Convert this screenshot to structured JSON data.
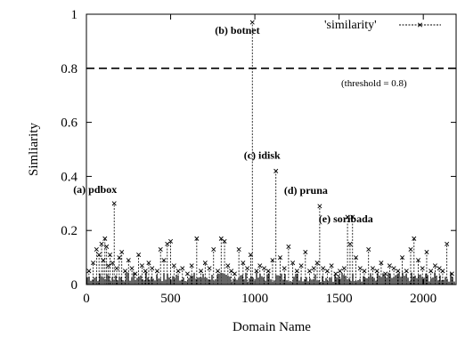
{
  "chart_data": {
    "type": "line",
    "xlabel": "Domain Name",
    "ylabel": "Simliarity",
    "xlim": [
      0,
      2200
    ],
    "ylim": [
      0,
      1
    ],
    "xticks": [
      0,
      500,
      1000,
      1500,
      2000
    ],
    "yticks": [
      0,
      0.2,
      0.4,
      0.6,
      0.8,
      1
    ],
    "ytick_labels": [
      "0",
      "0.2",
      "0.4",
      "0.6",
      "0.8",
      "1"
    ],
    "grid": false,
    "legend_position": "top-right",
    "series": [
      {
        "name": "'similarity'",
        "style": "impulses-points",
        "color": "#000000",
        "x": [
          15,
          40,
          60,
          75,
          90,
          100,
          110,
          120,
          130,
          140,
          155,
          165,
          180,
          195,
          210,
          230,
          250,
          270,
          290,
          310,
          330,
          350,
          370,
          390,
          420,
          440,
          460,
          480,
          500,
          520,
          545,
          570,
          600,
          625,
          655,
          680,
          705,
          730,
          755,
          780,
          800,
          820,
          840,
          860,
          880,
          905,
          930,
          955,
          975,
          985,
          1010,
          1030,
          1055,
          1080,
          1105,
          1125,
          1150,
          1175,
          1200,
          1225,
          1250,
          1275,
          1300,
          1325,
          1350,
          1370,
          1385,
          1405,
          1430,
          1455,
          1480,
          1505,
          1530,
          1550,
          1565,
          1580,
          1600,
          1625,
          1650,
          1675,
          1700,
          1725,
          1750,
          1775,
          1800,
          1825,
          1850,
          1875,
          1900,
          1925,
          1945,
          1970,
          1995,
          2020,
          2045,
          2070,
          2095,
          2115,
          2140,
          2170
        ],
        "y": [
          0.05,
          0.08,
          0.13,
          0.11,
          0.15,
          0.09,
          0.17,
          0.14,
          0.07,
          0.11,
          0.08,
          0.3,
          0.06,
          0.1,
          0.12,
          0.05,
          0.09,
          0.06,
          0.04,
          0.11,
          0.07,
          0.05,
          0.08,
          0.06,
          0.05,
          0.13,
          0.09,
          0.15,
          0.16,
          0.07,
          0.05,
          0.06,
          0.04,
          0.07,
          0.17,
          0.05,
          0.08,
          0.06,
          0.13,
          0.05,
          0.17,
          0.16,
          0.07,
          0.05,
          0.04,
          0.13,
          0.08,
          0.06,
          0.11,
          0.97,
          0.05,
          0.07,
          0.06,
          0.05,
          0.09,
          0.42,
          0.1,
          0.06,
          0.14,
          0.08,
          0.05,
          0.07,
          0.12,
          0.05,
          0.06,
          0.08,
          0.29,
          0.06,
          0.05,
          0.07,
          0.04,
          0.05,
          0.06,
          0.25,
          0.15,
          0.25,
          0.1,
          0.06,
          0.05,
          0.13,
          0.06,
          0.05,
          0.08,
          0.04,
          0.07,
          0.06,
          0.05,
          0.1,
          0.05,
          0.13,
          0.17,
          0.09,
          0.06,
          0.12,
          0.05,
          0.07,
          0.06,
          0.05,
          0.15,
          0.04
        ]
      }
    ],
    "threshold": {
      "value": 0.8,
      "label": "(threshold = 0.8)"
    },
    "annotations": [
      {
        "text": "(a) pdbox",
        "x": 165,
        "y": 0.3
      },
      {
        "text": "(b) botnet",
        "x": 985,
        "y": 0.97
      },
      {
        "text": "(c) idisk",
        "x": 1125,
        "y": 0.42
      },
      {
        "text": "(d) pruna",
        "x": 1385,
        "y": 0.29
      },
      {
        "text": "(e) soribada",
        "x": 1580,
        "y": 0.25
      }
    ]
  }
}
